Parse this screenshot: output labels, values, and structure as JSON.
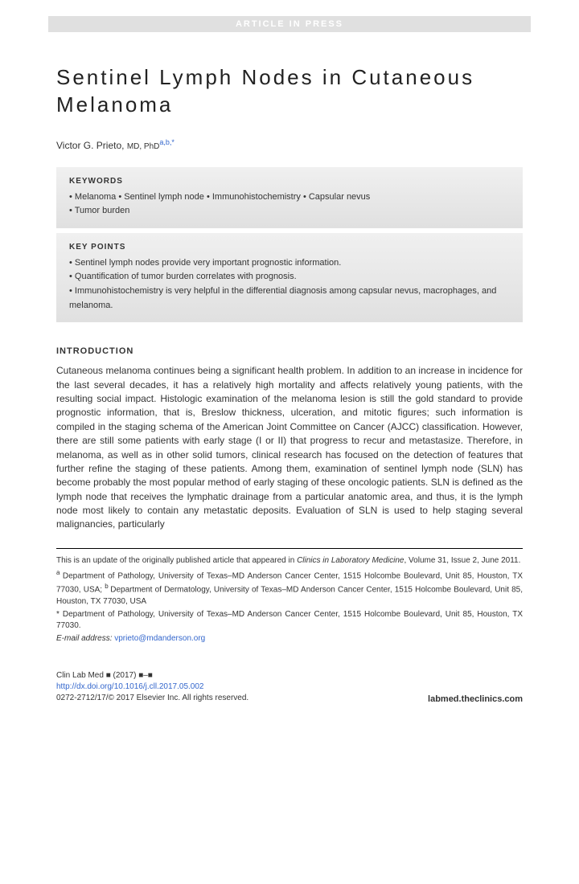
{
  "headerBar": "ARTICLE IN PRESS",
  "title": "Sentinel Lymph Nodes in Cutaneous Melanoma",
  "author": {
    "name": "Victor G. Prieto,",
    "degrees": " MD, PhD",
    "affiliations": "a,b,",
    "corresponding": "*"
  },
  "keywords": {
    "heading": "KEYWORDS",
    "line1": "• Melanoma • Sentinel lymph node • Immunohistochemistry • Capsular nevus",
    "line2": "• Tumor burden"
  },
  "keypoints": {
    "heading": "KEY POINTS",
    "items": [
      "Sentinel lymph nodes provide very important prognostic information.",
      "Quantification of tumor burden correlates with prognosis.",
      "Immunohistochemistry is very helpful in the differential diagnosis among capsular nevus, macrophages, and melanoma."
    ]
  },
  "introduction": {
    "heading": "INTRODUCTION",
    "body": "Cutaneous melanoma continues being a significant health problem. In addition to an increase in incidence for the last several decades, it has a relatively high mortality and affects relatively young patients, with the resulting social impact. Histologic examination of the melanoma lesion is still the gold standard to provide prognostic information, that is, Breslow thickness, ulceration, and mitotic figures; such information is compiled in the staging schema of the American Joint Committee on Cancer (AJCC) classification. However, there are still some patients with early stage (I or II) that progress to recur and metastasize. Therefore, in melanoma, as well as in other solid tumors, clinical research has focused on the detection of features that further refine the staging of these patients. Among them, examination of sentinel lymph node (SLN) has become probably the most popular method of early staging of these oncologic patients. SLN is defined as the lymph node that receives the lymphatic drainage from a particular anatomic area, and thus, it is the lymph node most likely to contain any metastatic deposits. Evaluation of SLN is used to help staging several malignancies, particularly"
  },
  "footnotes": {
    "update": "This is an update of the originally published article that appeared in ",
    "updateItalic": "Clinics in Laboratory Medicine",
    "updateEnd": ", Volume 31, Issue 2, June 2011.",
    "affA": "Department of Pathology, University of Texas–MD Anderson Cancer Center, 1515 Holcombe Boulevard, Unit 85, Houston, TX 77030, USA; ",
    "affB": "Department of Dermatology, University of Texas–MD Anderson Cancer Center, 1515 Holcombe Boulevard, Unit 85, Houston, TX 77030, USA",
    "corr": "* Department of Pathology, University of Texas–MD Anderson Cancer Center, 1515 Holcombe Boulevard, Unit 85, Houston, TX 77030.",
    "emailLabel": "E-mail address: ",
    "email": "vprieto@mdanderson.org"
  },
  "footer": {
    "journal": "Clin Lab Med ■ (2017) ■–■",
    "doi": "http://dx.doi.org/10.1016/j.cll.2017.05.002",
    "copyright": "0272-2712/17/© 2017 Elsevier Inc. All rights reserved.",
    "site": "labmed.theclinics.com"
  },
  "colors": {
    "headerBarBg": "#e0e0e0",
    "headerBarText": "#ffffff",
    "link": "#3366cc",
    "boxBgTop": "#f0f0f0",
    "boxBgBottom": "#e0e0e0"
  }
}
